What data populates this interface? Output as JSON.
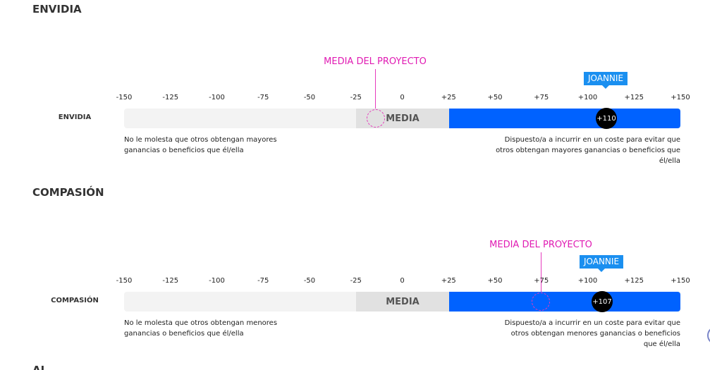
{
  "sections": [
    {
      "title": "ENVIDIA",
      "row_label": "ENVIDIA",
      "scale_ticks": [
        "-150",
        "-125",
        "-100",
        "-75",
        "-50",
        "-25",
        "0",
        "+25",
        "+50",
        "+75",
        "+100",
        "+125",
        "+150"
      ],
      "media_label": "MEDIA",
      "average_label": "MEDIA DEL PROYECTO",
      "average_value": -14,
      "person_name": "JOANNIE",
      "score_value": 110,
      "score_label": "+110",
      "desc_left": "No le molesta que otros obtengan mayores ganancias o beneficios que él/ella",
      "desc_right": "Dispuesto/a a incurrir en un coste para evitar que otros obtengan mayores ganancias o beneficios que él/ella"
    },
    {
      "title": "COMPASIÓN",
      "row_label": "COMPASIÓN",
      "scale_ticks": [
        "-150",
        "-125",
        "-100",
        "-75",
        "-50",
        "-25",
        "0",
        "+25",
        "+50",
        "+75",
        "+100",
        "+125",
        "+150"
      ],
      "media_label": "MEDIA",
      "average_label": "MEDIA DEL PROYECTO",
      "average_value": 75,
      "person_name": "JOANNIE",
      "score_value": 107,
      "score_label": "+107",
      "desc_left": "No le molesta que otros obtengan menores ganancias o beneficios que él/ella",
      "desc_right": "Dispuesto/a a incurrir en un coste para evitar que otros obtengan menores ganancias o beneficios que él/ella"
    }
  ],
  "next_section_title": "AL...",
  "colors": {
    "fill": "#0062ff",
    "media_zone": "#e1e1e1",
    "average": "#e01bb3",
    "person_tag": "#1a8ff0"
  }
}
